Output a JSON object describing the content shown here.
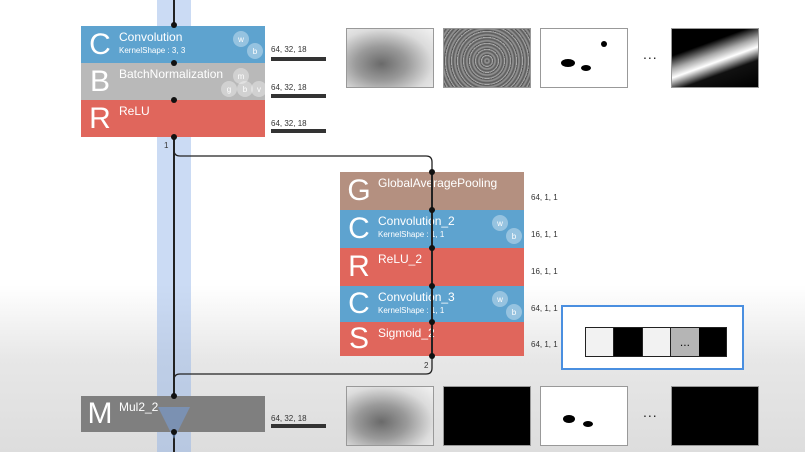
{
  "nodes": {
    "conv": {
      "letter": "C",
      "name": "Convolution",
      "sub": "KernelShape : 3, 3",
      "w": "w",
      "b": "b"
    },
    "bn": {
      "letter": "B",
      "name": "BatchNormalization",
      "m": "m",
      "v": "v",
      "g": "g",
      "b": "b"
    },
    "relu": {
      "letter": "R",
      "name": "ReLU"
    },
    "gap": {
      "letter": "G",
      "name": "GlobalAveragePooling"
    },
    "conv2": {
      "letter": "C",
      "name": "Convolution_2",
      "sub": "KernelShape : 1, 1",
      "w": "w",
      "b": "b"
    },
    "relu2": {
      "letter": "R",
      "name": "ReLU_2"
    },
    "conv3": {
      "letter": "C",
      "name": "Convolution_3",
      "sub": "KernelShape : 1, 1",
      "w": "w",
      "b": "b"
    },
    "sig2": {
      "letter": "S",
      "name": "Sigmoid_2"
    },
    "mul2": {
      "letter": "M",
      "name": "Mul2_2"
    }
  },
  "shapes": {
    "conv": "64, 32, 18",
    "bn": "64, 32, 18",
    "relu": "64, 32, 18",
    "gap": "64, 1, 1",
    "conv2": "16, 1, 1",
    "relu2": "16, 1, 1",
    "conv3": "64, 1, 1",
    "sig2": "64, 1, 1",
    "mul2": "64, 32, 18"
  },
  "connections": {
    "from_relu": "1",
    "from_sigmoid": "2"
  },
  "ellipsis": "...",
  "channel_strip": {
    "ellipsis": "...",
    "cells": [
      "#f2f2f2",
      "#000000",
      "#f2f2f2",
      "#b5b5b5",
      "#000000"
    ]
  },
  "colors": {
    "conv": "#5ea3cf",
    "bn": "#b9b9b9",
    "relu": "#e0665c",
    "gap": "#b49080",
    "mul": "#7f7f7f",
    "highlight": "#4a8fe0"
  }
}
